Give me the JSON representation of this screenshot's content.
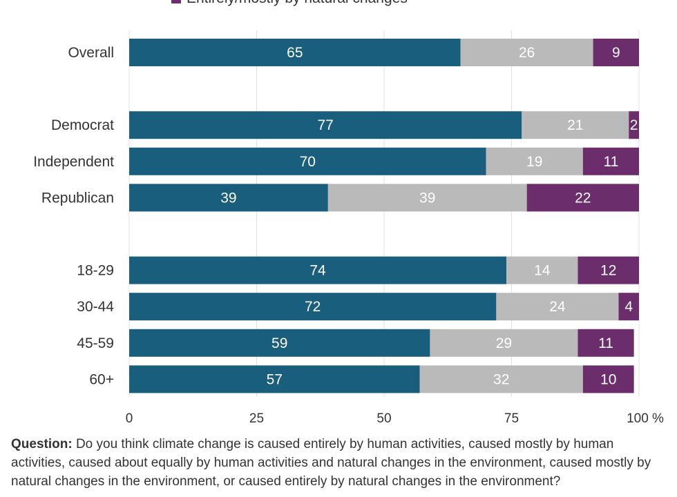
{
  "chart_data": {
    "type": "bar",
    "orientation": "horizontal",
    "stacked": true,
    "categories": [
      "Overall",
      "Democrat",
      "Independent",
      "Republican",
      "18-29",
      "30-44",
      "45-59",
      "60+"
    ],
    "groups": [
      [
        "Overall"
      ],
      [
        "Democrat",
        "Independent",
        "Republican"
      ],
      [
        "18-29",
        "30-44",
        "45-59",
        "60+"
      ]
    ],
    "series": [
      {
        "values": [
          65,
          77,
          70,
          39,
          74,
          72,
          59,
          57
        ],
        "color": "#1a5e7e"
      },
      {
        "values": [
          26,
          21,
          19,
          39,
          14,
          24,
          29,
          32
        ],
        "color": "#bababa"
      },
      {
        "name": "Entirely/mostly by natural changes",
        "values": [
          9,
          2,
          11,
          22,
          12,
          4,
          11,
          10
        ],
        "color": "#6b2d6b"
      }
    ],
    "xlim": [
      0,
      100
    ],
    "xticks": [
      0,
      25,
      50,
      75,
      100
    ],
    "xtick_labels": [
      "0",
      "25",
      "50",
      "75",
      "100 %"
    ],
    "grid": true,
    "legend_position": "top"
  },
  "footnote": {
    "label": "Question:",
    "text": " Do you think climate change is caused entirely by human activities, caused mostly by human activities, caused about equally by human activities and natural changes in the environment, caused mostly by natural changes in the environment, or caused entirely by natural changes in the environment?"
  }
}
